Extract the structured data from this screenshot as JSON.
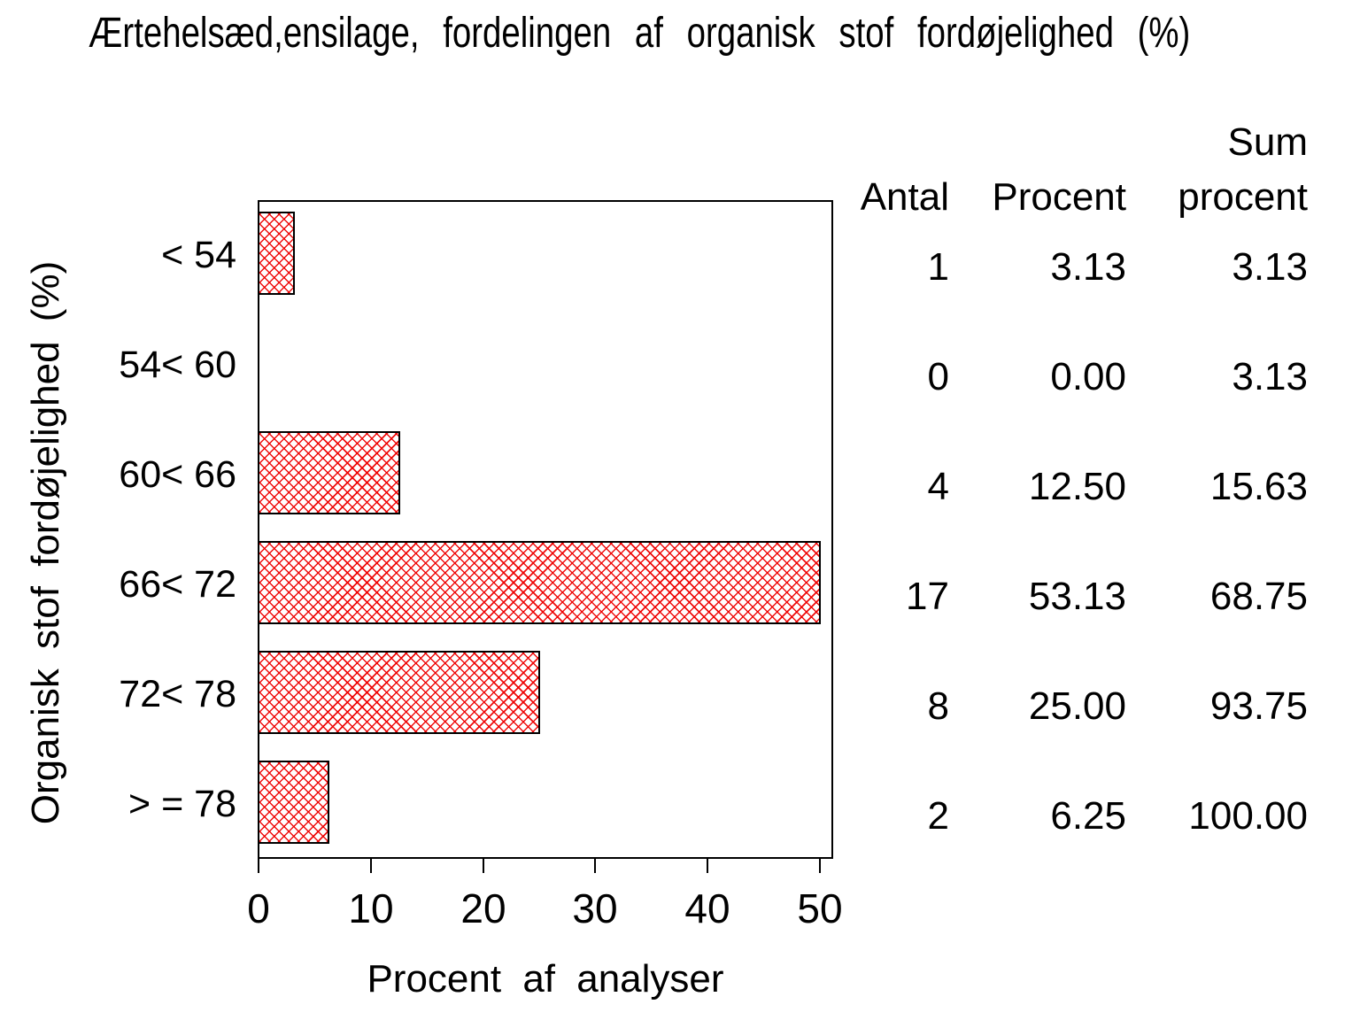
{
  "title": "Ærtehelsæd,ensilage, fordelingen af organisk stof fordøjelighed (%)",
  "chart_data": {
    "type": "bar",
    "orientation": "horizontal",
    "title": "Ærtehelsæd,ensilage, fordelingen af organisk stof fordøjelighed (%)",
    "categories": [
      "< 54",
      "54< 60",
      "60< 66",
      "66< 72",
      "72< 78",
      "> = 78"
    ],
    "values": [
      3.13,
      0.0,
      12.5,
      53.13,
      25.0,
      6.25
    ],
    "xlabel": "Procent af analyser",
    "ylabel": "Organisk stof fordøjelighed (%)",
    "xlim": [
      0,
      50
    ],
    "xticks": [
      0,
      10,
      20,
      30,
      40,
      50
    ],
    "grid": false,
    "legend": "none",
    "bar_fill": "red crosshatch on white",
    "bar_hatch_color": "#ee0000",
    "bar_border_color": "#000000",
    "series": [
      {
        "name": "Antal",
        "values": [
          1,
          0,
          4,
          17,
          8,
          2
        ]
      },
      {
        "name": "Procent",
        "values": [
          3.13,
          0.0,
          12.5,
          53.13,
          25.0,
          6.25
        ]
      },
      {
        "name": "Sum procent",
        "values": [
          3.13,
          3.13,
          15.63,
          68.75,
          93.75,
          100.0
        ]
      }
    ]
  },
  "side_table": {
    "col_headers": {
      "antal": "Antal",
      "procent": "Procent",
      "sum_line1": "Sum",
      "sum_line2": "procent"
    },
    "rows": [
      {
        "antal": "1",
        "procent": "3.13",
        "sum": "3.13"
      },
      {
        "antal": "0",
        "procent": "0.00",
        "sum": "3.13"
      },
      {
        "antal": "4",
        "procent": "12.50",
        "sum": "15.63"
      },
      {
        "antal": "17",
        "procent": "53.13",
        "sum": "68.75"
      },
      {
        "antal": "8",
        "procent": "25.00",
        "sum": "93.75"
      },
      {
        "antal": "2",
        "procent": "6.25",
        "sum": "100.00"
      }
    ]
  }
}
